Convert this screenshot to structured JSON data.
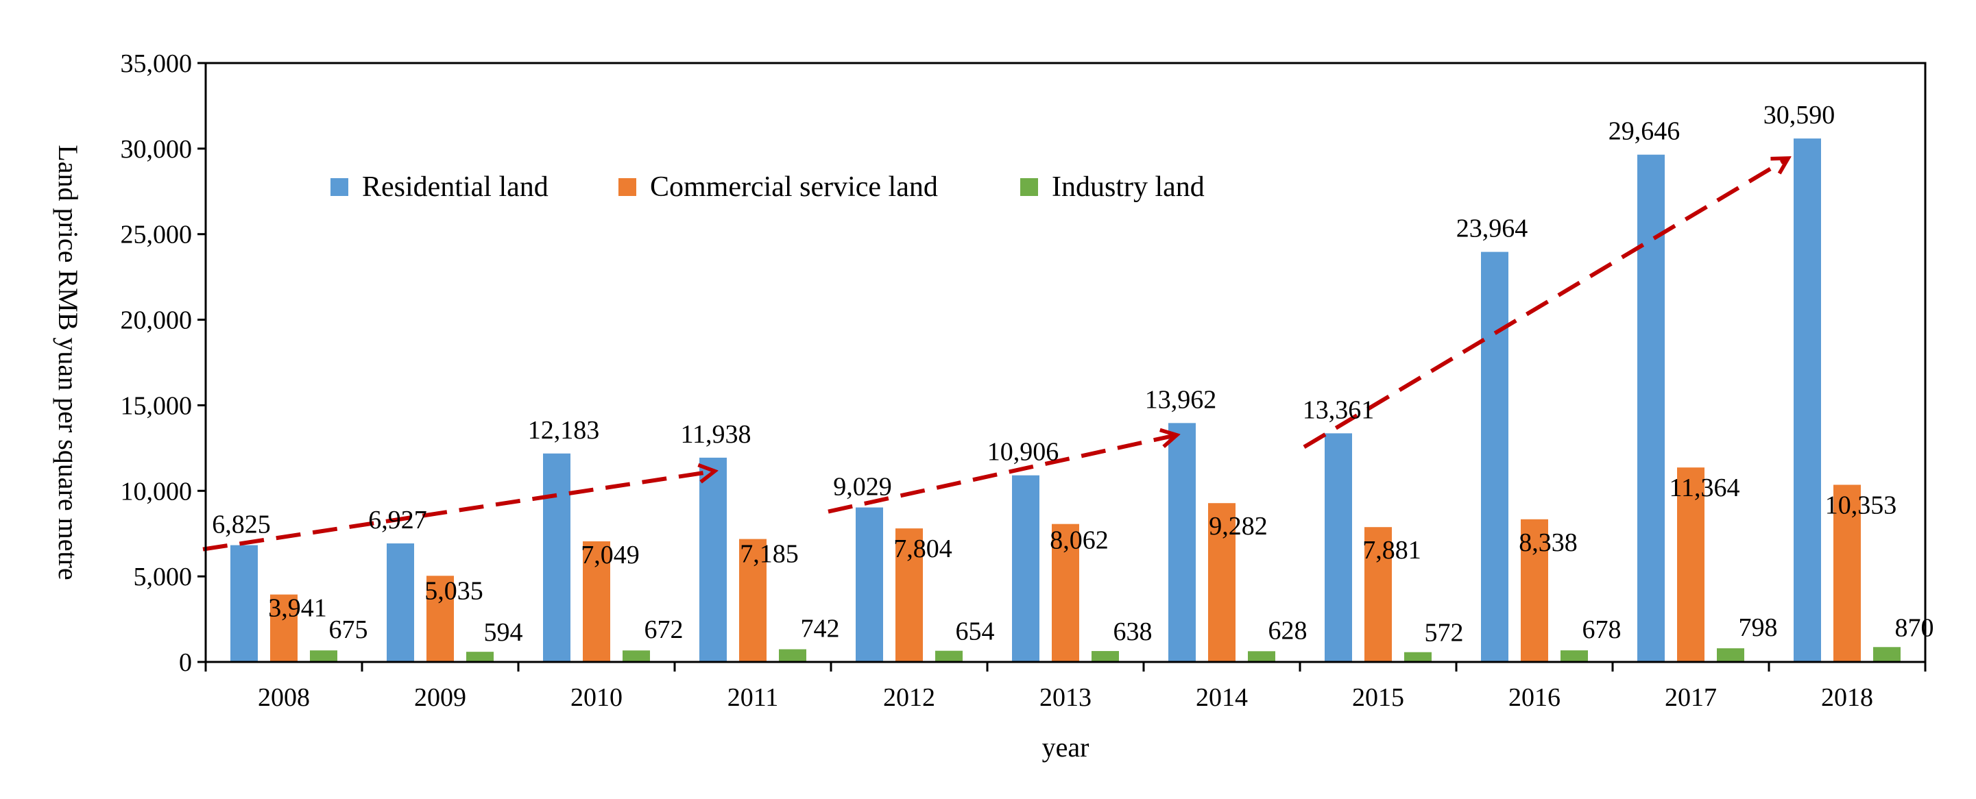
{
  "chart_data": {
    "type": "bar",
    "title": "",
    "xlabel": "year",
    "ylabel": "Land price  RMB yuan per square metre",
    "ylim": [
      0,
      35000
    ],
    "yticks": [
      0,
      5000,
      10000,
      15000,
      20000,
      25000,
      30000,
      35000
    ],
    "ytick_labels": [
      "0",
      "5,000",
      "10,000",
      "15,000",
      "20,000",
      "25,000",
      "30,000",
      "35,000"
    ],
    "grid": false,
    "legend_position": "top-left inside",
    "categories": [
      "2008",
      "2009",
      "2010",
      "2011",
      "2012",
      "2013",
      "2014",
      "2015",
      "2016",
      "2017",
      "2018"
    ],
    "series": [
      {
        "name": "Residential land",
        "color": "#5b9bd5",
        "values": [
          6825,
          6927,
          12183,
          11938,
          9029,
          10906,
          13962,
          13361,
          23964,
          29646,
          30590
        ],
        "labels": [
          "6,825",
          "6,927",
          "12,183",
          "11,938",
          "9,029",
          "10,906",
          "13,962",
          "13,361",
          "23,964",
          "29,646",
          "30,590"
        ]
      },
      {
        "name": "Commercial service land",
        "color": "#ed7d31",
        "values": [
          3941,
          5035,
          7049,
          7185,
          7804,
          8062,
          9282,
          7881,
          8338,
          11364,
          10353
        ],
        "labels": [
          "3,941",
          "5,035",
          "7,049",
          "7,185",
          "7,804",
          "8,062",
          "9,282",
          "7,881",
          "8,338",
          "11,364",
          "10,353"
        ]
      },
      {
        "name": "Industry land",
        "color": "#70ad47",
        "values": [
          675,
          594,
          672,
          742,
          654,
          638,
          628,
          572,
          678,
          798,
          870
        ],
        "labels": [
          "675",
          "594",
          "672",
          "742",
          "654",
          "638",
          "628",
          "572",
          "678",
          "798",
          "870"
        ]
      }
    ],
    "trend_arrows": {
      "color": "#c00000",
      "style": "dashed",
      "segments": [
        {
          "from": {
            "category": "2008",
            "value": 6825
          },
          "to": {
            "category": "2011",
            "value": 11938
          }
        },
        {
          "from": {
            "category": "2012",
            "value": 9029
          },
          "to": {
            "category": "2014",
            "value": 13962
          }
        },
        {
          "from": {
            "category": "2015",
            "value": 13361
          },
          "to": {
            "category": "2018",
            "value": 30590
          }
        }
      ]
    }
  }
}
